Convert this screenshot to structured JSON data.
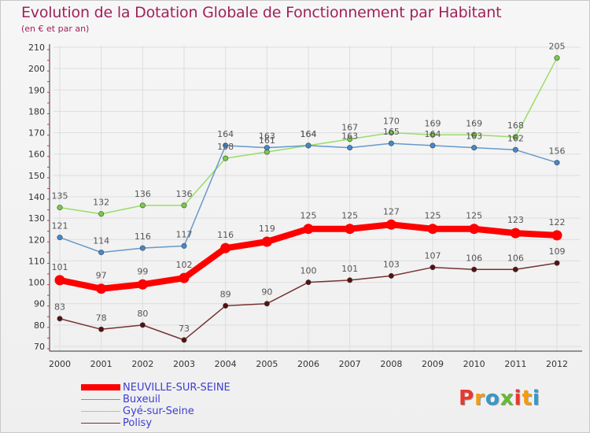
{
  "header": {
    "title": "Evolution de la Dotation Globale de Fonctionnement par Habitant",
    "subtitle": "(en € et par an)"
  },
  "logo": {
    "text": "Proxiti"
  },
  "chart_data": {
    "type": "line",
    "title": "Evolution de la Dotation Globale de Fonctionnement par Habitant",
    "subtitle": "(en € et par an)",
    "xlabel": "",
    "ylabel": "",
    "ylim": [
      70,
      210
    ],
    "yticks": [
      70,
      80,
      90,
      100,
      110,
      120,
      130,
      140,
      150,
      160,
      170,
      180,
      190,
      200,
      210
    ],
    "grid": true,
    "legend_position": "bottom-left",
    "categories": [
      "2000",
      "2001",
      "2002",
      "2003",
      "2004",
      "2005",
      "2006",
      "2007",
      "2008",
      "2009",
      "2010",
      "2011",
      "2012"
    ],
    "series": [
      {
        "name": "Gyé-sur-Seine",
        "color": "#99dd66",
        "marker": "#77cc44",
        "values": [
          135,
          132,
          136,
          136,
          158,
          161,
          164,
          167,
          170,
          169,
          169,
          168,
          205
        ]
      },
      {
        "name": "Buxeuil",
        "color": "#6699cc",
        "marker": "#4488cc",
        "values": [
          121,
          114,
          116,
          117,
          164,
          163,
          164,
          163,
          165,
          164,
          163,
          162,
          156
        ]
      },
      {
        "name": "NEUVILLE-SUR-SEINE",
        "color": "#ff0000",
        "marker": "#ff0000",
        "values": [
          101,
          97,
          99,
          102,
          116,
          119,
          125,
          125,
          127,
          125,
          125,
          123,
          122
        ]
      },
      {
        "name": "Polisy",
        "color": "#773333",
        "marker": "#551111",
        "values": [
          83,
          78,
          80,
          73,
          89,
          90,
          100,
          101,
          103,
          107,
          106,
          106,
          109
        ]
      }
    ],
    "legend_order": [
      "NEUVILLE-SUR-SEINE",
      "Buxeuil",
      "Gyé-sur-Seine",
      "Polisy"
    ]
  }
}
